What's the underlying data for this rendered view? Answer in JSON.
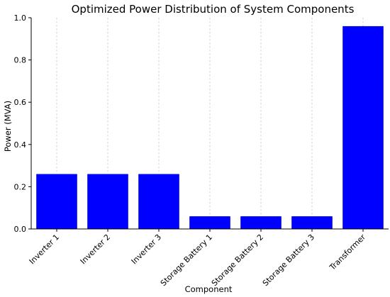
{
  "chart_data": {
    "type": "bar",
    "title": "Optimized Power Distribution of System Components",
    "xlabel": "Component",
    "ylabel": "Power (MVA)",
    "categories": [
      "Inverter 1",
      "Inverter 2",
      "Inverter 3",
      "Storage Battery 1",
      "Storage Battery 2",
      "Storage Battery 3",
      "Transformer"
    ],
    "values": [
      0.26,
      0.26,
      0.26,
      0.06,
      0.06,
      0.06,
      0.96
    ],
    "ylim": [
      0,
      1.0
    ],
    "yticks": [
      0.0,
      0.2,
      0.4,
      0.6,
      0.8,
      1.0
    ],
    "ytick_labels": [
      "0.0",
      "0.2",
      "0.4",
      "0.6",
      "0.8",
      "1.0"
    ],
    "bar_color": "#0000ff",
    "grid": "vertical dashed",
    "legend": "none"
  }
}
